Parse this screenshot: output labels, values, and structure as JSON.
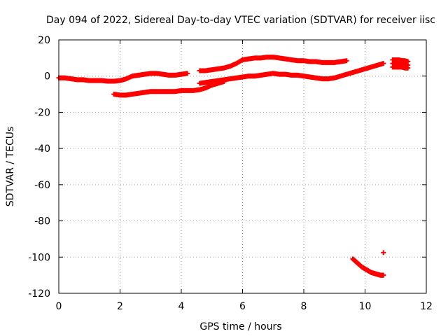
{
  "chart_data": {
    "type": "scatter",
    "title": "Day 094 of 2022, Sidereal Day-to-day VTEC variation (SDTVAR) for receiver iisc",
    "xlabel": "GPS time / hours",
    "ylabel": "SDTVAR / TECUs",
    "xlim": [
      0,
      12
    ],
    "ylim": [
      -120,
      20
    ],
    "xticks": [
      0,
      2,
      4,
      6,
      8,
      10,
      12
    ],
    "yticks": [
      -120,
      -100,
      -80,
      -60,
      -40,
      -20,
      0,
      20
    ],
    "grid": true,
    "marker": "+",
    "color": "#ff0000",
    "series": [
      {
        "x": [
          0.0,
          0.2,
          0.4,
          0.6,
          0.8,
          1.0,
          1.2,
          1.4,
          1.6,
          1.8,
          2.0,
          2.2,
          2.4,
          2.6,
          2.8,
          3.0,
          3.2,
          3.4,
          3.6,
          3.8,
          4.0,
          4.2
        ],
        "y": [
          -1,
          -1,
          -1.5,
          -2,
          -2,
          -2.5,
          -2.5,
          -2.5,
          -2.8,
          -2.8,
          -2.5,
          -1.5,
          0,
          0.5,
          1,
          1.5,
          1.5,
          1,
          0.5,
          0.5,
          1,
          1.5
        ]
      },
      {
        "x": [
          4.6,
          4.8,
          5.0,
          5.2,
          5.4,
          5.6,
          5.8,
          6.0,
          6.2,
          6.4,
          6.6,
          6.8,
          7.0,
          7.2,
          7.4,
          7.6,
          7.8,
          8.0,
          8.2,
          8.4,
          8.6,
          8.8,
          9.0,
          9.2,
          9.4
        ],
        "y": [
          3,
          3,
          3.5,
          4,
          4.5,
          5.5,
          7,
          9,
          9.5,
          10,
          10,
          10.5,
          10.5,
          10,
          9.5,
          9,
          8.5,
          8.5,
          8,
          8,
          7.5,
          7.5,
          7.5,
          8,
          8.5
        ]
      },
      {
        "x": [
          1.8,
          2.0,
          2.2,
          2.4,
          2.6,
          2.8,
          3.0,
          3.2,
          3.4,
          3.6,
          3.8,
          4.0,
          4.2,
          4.4,
          4.6,
          4.8,
          5.0,
          5.2,
          5.4
        ],
        "y": [
          -10,
          -10.5,
          -10.5,
          -10,
          -9.5,
          -9,
          -8.5,
          -8.5,
          -8.5,
          -8.5,
          -8.5,
          -8,
          -8,
          -8,
          -7.5,
          -6.5,
          -5,
          -4,
          -3
        ]
      },
      {
        "x": [
          4.6,
          4.8,
          5.0,
          5.2,
          5.4,
          5.6,
          5.8,
          6.0,
          6.2,
          6.4,
          6.6,
          6.8,
          7.0,
          7.2,
          7.4,
          7.6,
          7.8,
          8.0,
          8.2,
          8.4,
          8.6,
          8.8,
          9.0,
          9.2,
          9.4,
          9.6,
          9.8,
          10.0,
          10.2,
          10.4,
          10.6
        ],
        "y": [
          -4,
          -3.5,
          -3,
          -2.5,
          -2,
          -1.5,
          -1,
          -0.5,
          0,
          0,
          0.5,
          1,
          1.5,
          1,
          1,
          0.5,
          0.5,
          0,
          -0.5,
          -1,
          -1.5,
          -1.5,
          -1,
          0,
          1,
          2,
          3,
          4,
          5,
          6,
          7
        ]
      },
      {
        "x": [
          10.9,
          11.0,
          11.1,
          11.2,
          11.3,
          11.4,
          10.9,
          11.0,
          11.1,
          11.2,
          11.3,
          11.4,
          10.9,
          11.0,
          11.1,
          11.2,
          11.3,
          11.4
        ],
        "y": [
          9,
          9,
          9,
          8.5,
          8.5,
          8,
          7,
          7,
          6.5,
          6.5,
          6.5,
          6,
          5,
          5,
          5,
          5,
          4.5,
          4.5
        ]
      },
      {
        "x": [
          9.6,
          9.7,
          9.8,
          9.9,
          10.0,
          10.1,
          10.2,
          10.3,
          10.4,
          10.5,
          10.55,
          10.6
        ],
        "y": [
          -101,
          -102.5,
          -104,
          -105.5,
          -106.5,
          -107.5,
          -108.5,
          -109,
          -109.5,
          -110,
          -110,
          -110
        ]
      },
      {
        "x": [
          10.6
        ],
        "y": [
          -97.5
        ]
      }
    ]
  }
}
